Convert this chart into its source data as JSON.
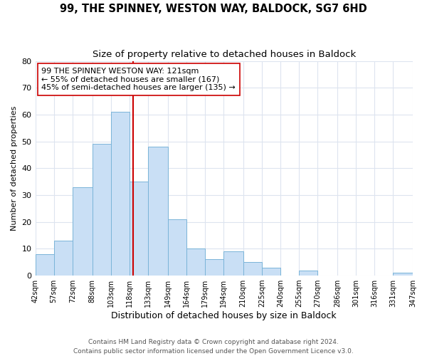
{
  "title": "99, THE SPINNEY, WESTON WAY, BALDOCK, SG7 6HD",
  "subtitle": "Size of property relative to detached houses in Baldock",
  "xlabel": "Distribution of detached houses by size in Baldock",
  "ylabel": "Number of detached properties",
  "bin_labels": [
    "42sqm",
    "57sqm",
    "72sqm",
    "88sqm",
    "103sqm",
    "118sqm",
    "133sqm",
    "149sqm",
    "164sqm",
    "179sqm",
    "194sqm",
    "210sqm",
    "225sqm",
    "240sqm",
    "255sqm",
    "270sqm",
    "286sqm",
    "301sqm",
    "316sqm",
    "331sqm",
    "347sqm"
  ],
  "bar_values": [
    8,
    13,
    33,
    49,
    61,
    35,
    48,
    21,
    10,
    6,
    9,
    5,
    3,
    0,
    2,
    0,
    0,
    0,
    0,
    1
  ],
  "bin_edges": [
    42,
    57,
    72,
    88,
    103,
    118,
    133,
    149,
    164,
    179,
    194,
    210,
    225,
    240,
    255,
    270,
    286,
    301,
    316,
    331,
    347
  ],
  "bar_color": "#c9dff5",
  "bar_edge_color": "#7ab4d8",
  "vline_x": 121,
  "vline_color": "#cc0000",
  "annotation_line1": "99 THE SPINNEY WESTON WAY: 121sqm",
  "annotation_line2": "← 55% of detached houses are smaller (167)",
  "annotation_line3": "45% of semi-detached houses are larger (135) →",
  "annotation_box_edge": "#cc0000",
  "ylim": [
    0,
    80
  ],
  "yticks": [
    0,
    10,
    20,
    30,
    40,
    50,
    60,
    70,
    80
  ],
  "footer_line1": "Contains HM Land Registry data © Crown copyright and database right 2024.",
  "footer_line2": "Contains public sector information licensed under the Open Government Licence v3.0.",
  "bg_color": "#ffffff",
  "grid_color": "#dde4ef",
  "title_fontsize": 10.5,
  "subtitle_fontsize": 9.5,
  "xlabel_fontsize": 9,
  "ylabel_fontsize": 8,
  "tick_fontsize": 7,
  "annotation_fontsize": 8,
  "footer_fontsize": 6.5
}
